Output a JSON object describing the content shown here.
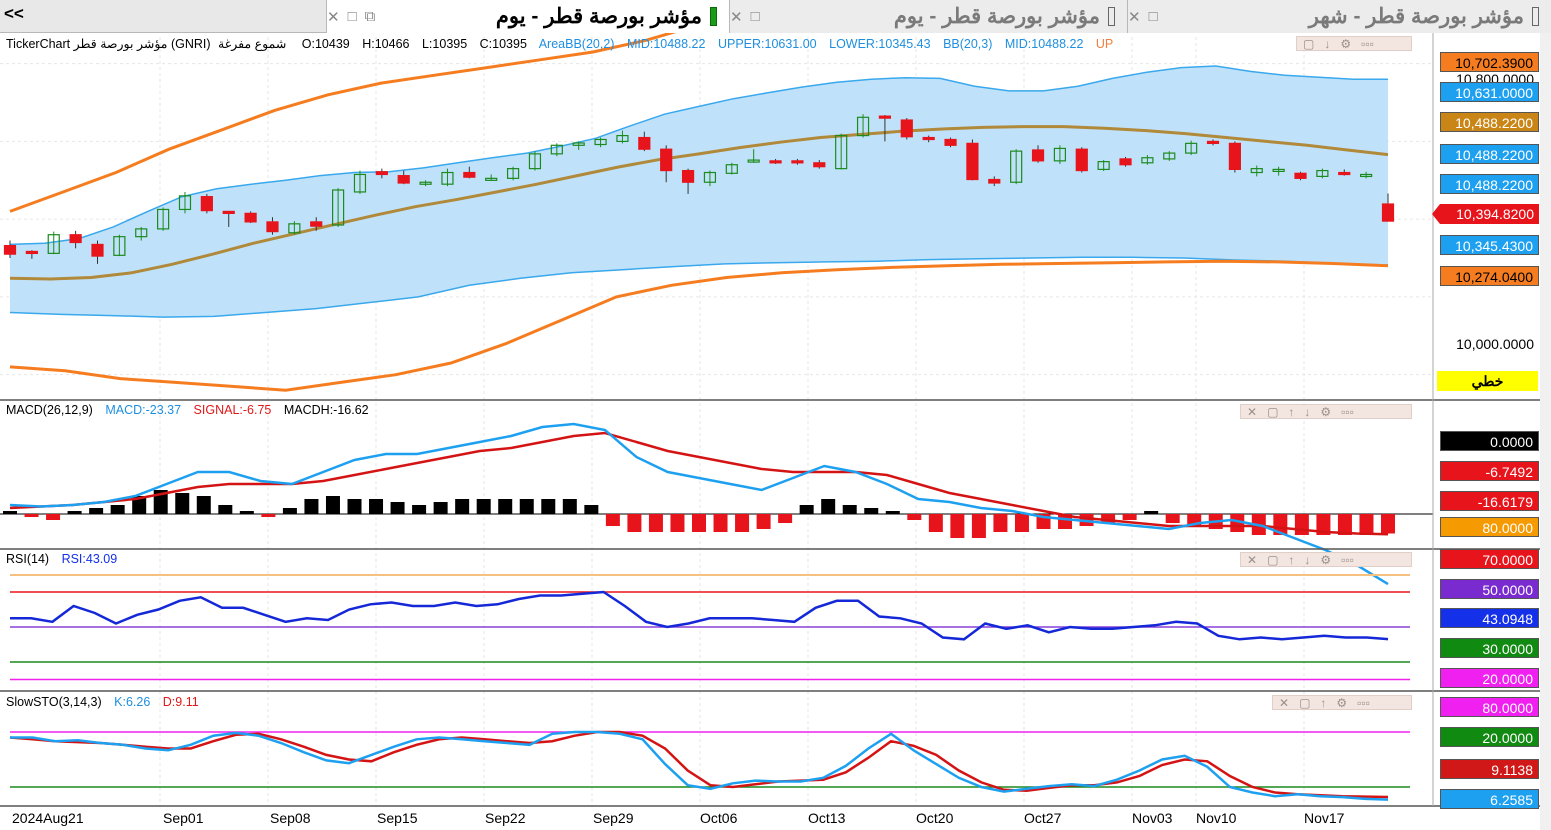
{
  "tabs": {
    "nav_arrows": "<<",
    "items": [
      {
        "label": "مؤشر بورصة قطر - يوم",
        "active": true
      },
      {
        "label": "مؤشر بورصة قطر - يوم",
        "active": false
      },
      {
        "label": "مؤشر بورصة قطر - شهر",
        "active": false
      }
    ]
  },
  "main_legend": {
    "symbol": "TickerChart مؤشر بورصة قطر (GNRI)",
    "candle_type": "شموع مفرغة",
    "open": "O:10439",
    "high": "H:10466",
    "low": "L:10395",
    "close": "C:10395",
    "areabb": "AreaBB(20,2)",
    "areabb_mid": "MID:10488.22",
    "areabb_upper": "UPPER:10631.00",
    "areabb_lower": "LOWER:10345.43",
    "bb": "BB(20,3)",
    "bb_mid": "MID:10488.22",
    "bb_upper_trunc": "UP",
    "colors": {
      "areabb": "#1e8fe0",
      "bb": "#1e8fe0"
    }
  },
  "macd_legend": {
    "name": "MACD(26,12,9)",
    "macd": "MACD:-23.37",
    "signal": "SIGNAL:-6.75",
    "hist": "MACDH:-16.62"
  },
  "rsi_legend": {
    "name": "RSI(14)",
    "rsi": "RSI:43.09"
  },
  "sto_legend": {
    "name": "SlowSTO(3,14,3)",
    "k": "K:6.26",
    "d": "D:9.11"
  },
  "price_axis": [
    {
      "text": "10,702.3900",
      "bg": "#f57d20",
      "color": "#000"
    },
    {
      "text": "10,631.0000",
      "bg": "#1ea0f0",
      "color": "#fff"
    },
    {
      "text": "10,488.2200",
      "bg": "#c98516",
      "color": "#fff"
    },
    {
      "text": "10,488.2200",
      "bg": "#1ea0f0",
      "color": "#fff"
    },
    {
      "text": "10,488.2200",
      "bg": "#1ea0f0",
      "color": "#fff"
    },
    {
      "text": "10,394.8200",
      "bg": "#e8141c",
      "color": "#fff"
    },
    {
      "text": "10,345.4300",
      "bg": "#1ea0f0",
      "color": "#fff"
    },
    {
      "text": "10,274.0400",
      "bg": "#f57d20",
      "color": "#000"
    },
    {
      "text": "10,000.0000",
      "bg": "",
      "color": "#000"
    },
    {
      "text": "10,800.0000",
      "bg": "",
      "color": "#000"
    }
  ],
  "chart_style_button": "خطي",
  "macd_axis": [
    {
      "text": "0.0000",
      "bg": "#000000",
      "color": "#fff"
    },
    {
      "text": "-6.7492",
      "bg": "#e8141c",
      "color": "#fff"
    },
    {
      "text": "-16.6179",
      "bg": "#e8141c",
      "color": "#fff"
    },
    {
      "text": "80.0000",
      "bg": "#f59a00",
      "color": "#fff"
    }
  ],
  "rsi_axis": [
    {
      "text": "70.0000",
      "bg": "#e8141c",
      "color": "#fff"
    },
    {
      "text": "50.0000",
      "bg": "#7a2bd0",
      "color": "#fff"
    },
    {
      "text": "43.0948",
      "bg": "#1430e8",
      "color": "#fff"
    },
    {
      "text": "30.0000",
      "bg": "#118a11",
      "color": "#fff"
    },
    {
      "text": "20.0000",
      "bg": "#f020f0",
      "color": "#fff"
    }
  ],
  "sto_axis": [
    {
      "text": "80.0000",
      "bg": "#f020f0",
      "color": "#fff"
    },
    {
      "text": "20.0000",
      "bg": "#118a11",
      "color": "#fff"
    },
    {
      "text": "9.1138",
      "bg": "#d01818",
      "color": "#fff"
    },
    {
      "text": "6.2585",
      "bg": "#1ea0f0",
      "color": "#fff"
    }
  ],
  "x_axis_labels": [
    "2024Aug21",
    "Sep01",
    "Sep08",
    "Sep15",
    "Sep22",
    "Sep29",
    "Oct06",
    "Oct13",
    "Oct20",
    "Oct27",
    "Nov03",
    "Nov10",
    "Nov17"
  ],
  "chart_data": {
    "type": "line",
    "price": {
      "ohlc": [
        [
          10332,
          10345,
          10300,
          10310
        ],
        [
          10317,
          10320,
          10298,
          10312
        ],
        [
          10312,
          10368,
          10310,
          10360
        ],
        [
          10360,
          10370,
          10325,
          10340
        ],
        [
          10335,
          10345,
          10285,
          10305
        ],
        [
          10307,
          10360,
          10305,
          10355
        ],
        [
          10355,
          10380,
          10345,
          10375
        ],
        [
          10375,
          10430,
          10370,
          10425
        ],
        [
          10425,
          10470,
          10415,
          10460
        ],
        [
          10458,
          10465,
          10415,
          10422
        ],
        [
          10420,
          10420,
          10380,
          10418
        ],
        [
          10415,
          10420,
          10390,
          10393
        ],
        [
          10393,
          10405,
          10360,
          10368
        ],
        [
          10365,
          10395,
          10360,
          10388
        ],
        [
          10393,
          10405,
          10370,
          10382
        ],
        [
          10385,
          10480,
          10380,
          10475
        ],
        [
          10470,
          10525,
          10465,
          10515
        ],
        [
          10522,
          10530,
          10505,
          10515
        ],
        [
          10512,
          10525,
          10490,
          10493
        ],
        [
          10493,
          10500,
          10485,
          10495
        ],
        [
          10490,
          10530,
          10485,
          10520
        ],
        [
          10520,
          10535,
          10505,
          10508
        ],
        [
          10505,
          10515,
          10500,
          10505
        ],
        [
          10505,
          10535,
          10500,
          10530
        ],
        [
          10530,
          10575,
          10525,
          10568
        ],
        [
          10568,
          10595,
          10562,
          10590
        ],
        [
          10590,
          10600,
          10578,
          10596
        ],
        [
          10592,
          10610,
          10585,
          10605
        ],
        [
          10600,
          10628,
          10595,
          10615
        ],
        [
          10610,
          10625,
          10575,
          10580
        ],
        [
          10580,
          10590,
          10495,
          10525
        ],
        [
          10525,
          10530,
          10465,
          10495
        ],
        [
          10495,
          10525,
          10485,
          10520
        ],
        [
          10518,
          10545,
          10515,
          10540
        ],
        [
          10548,
          10580,
          10545,
          10552
        ],
        [
          10550,
          10555,
          10542,
          10548
        ],
        [
          10550,
          10555,
          10540,
          10545
        ],
        [
          10545,
          10552,
          10530,
          10535
        ],
        [
          10530,
          10620,
          10528,
          10615
        ],
        [
          10615,
          10670,
          10610,
          10662
        ],
        [
          10665,
          10668,
          10600,
          10660
        ],
        [
          10655,
          10660,
          10605,
          10612
        ],
        [
          10610,
          10615,
          10598,
          10605
        ],
        [
          10605,
          10610,
          10585,
          10590
        ],
        [
          10595,
          10605,
          10500,
          10502
        ],
        [
          10502,
          10510,
          10485,
          10493
        ],
        [
          10495,
          10580,
          10490,
          10575
        ],
        [
          10578,
          10590,
          10545,
          10550
        ],
        [
          10550,
          10590,
          10542,
          10582
        ],
        [
          10580,
          10585,
          10520,
          10525
        ],
        [
          10528,
          10552,
          10524,
          10548
        ],
        [
          10555,
          10560,
          10535,
          10540
        ],
        [
          10545,
          10565,
          10540,
          10558
        ],
        [
          10555,
          10575,
          10550,
          10570
        ],
        [
          10570,
          10602,
          10565,
          10595
        ],
        [
          10600,
          10605,
          10590,
          10595
        ],
        [
          10595,
          10600,
          10520,
          10528
        ],
        [
          10520,
          10538,
          10510,
          10530
        ],
        [
          10525,
          10535,
          10512,
          10528
        ],
        [
          10518,
          10522,
          10500,
          10505
        ],
        [
          10510,
          10530,
          10505,
          10525
        ],
        [
          10520,
          10528,
          10512,
          10517
        ],
        [
          10512,
          10522,
          10505,
          10515
        ],
        [
          10439,
          10466,
          10395,
          10395
        ]
      ],
      "bb_upper": [
        10335,
        10338,
        10350,
        10380,
        10420,
        10458,
        10478,
        10490,
        10500,
        10512,
        10520,
        10522,
        10532,
        10545,
        10558,
        10570,
        10588,
        10608,
        10640,
        10670,
        10690,
        10710,
        10725,
        10740,
        10752,
        10760,
        10764,
        10762,
        10742,
        10730,
        10730,
        10742,
        10762,
        10778,
        10790,
        10794,
        10780,
        10770,
        10765,
        10760,
        10760
      ],
      "bb_lower": [
        10160,
        10155,
        10152,
        10148,
        10150,
        10160,
        10170,
        10185,
        10200,
        10230,
        10248,
        10262,
        10270,
        10278,
        10285,
        10288,
        10290,
        10292,
        10296,
        10298,
        10300,
        10302,
        10302,
        10300,
        10295,
        10292,
        10286,
        10282
      ],
      "bb3_upper": [
        10420,
        10470,
        10520,
        10580,
        10630,
        10680,
        10720,
        10750,
        10770,
        10790,
        10810,
        10830,
        10860,
        10900,
        10950,
        11000,
        11060,
        11100,
        11140,
        11160,
        11170,
        11175,
        11180,
        11182,
        11184,
        11180,
        11160
      ],
      "bb3_lower": [
        10020,
        10010,
        9990,
        9980,
        9970,
        9960,
        9980,
        10000,
        10030,
        10080,
        10140,
        10200,
        10230,
        10250,
        10262,
        10270,
        10276,
        10280,
        10284,
        10286,
        10288,
        10290,
        10292,
        10290,
        10286,
        10280
      ],
      "bb_mid": [
        10248,
        10246,
        10250,
        10262,
        10284,
        10310,
        10338,
        10362,
        10386,
        10410,
        10432,
        10450,
        10470,
        10490,
        10512,
        10534,
        10553,
        10568,
        10584,
        10598,
        10610,
        10618,
        10626,
        10632,
        10636,
        10638,
        10638,
        10634,
        10628,
        10620,
        10610,
        10600,
        10590,
        10578,
        10566
      ]
    },
    "macd": {
      "macd": [
        3,
        2.5,
        3,
        4,
        6,
        10,
        14,
        14,
        11,
        10,
        14,
        18,
        20,
        20,
        22,
        24,
        26,
        29,
        30,
        28,
        19,
        14,
        12,
        10,
        8,
        12,
        16,
        14,
        10,
        5,
        4,
        2,
        1,
        -1,
        -2,
        -3,
        -4,
        -5,
        -3,
        -2,
        -4,
        -8,
        -12,
        -17,
        -23.37
      ],
      "signal": [
        2,
        2.5,
        3,
        4,
        5,
        7,
        9,
        10,
        10,
        10,
        11,
        13,
        15,
        17,
        19,
        21,
        22,
        24,
        26,
        27,
        24,
        21,
        19,
        17,
        15,
        14,
        14,
        14,
        13,
        10,
        7,
        5,
        3,
        1,
        -1,
        -2,
        -3,
        -4,
        -4,
        -4,
        -4,
        -5,
        -6,
        -6.5,
        -6.75
      ],
      "histogram": [
        1,
        -1,
        -2,
        1,
        2,
        3,
        6,
        8,
        7,
        6,
        3,
        1,
        -1,
        2,
        5,
        6,
        5,
        5,
        4,
        3,
        4,
        5,
        5,
        5,
        5,
        5,
        5,
        3,
        -4,
        -6,
        -6,
        -6,
        -6,
        -6,
        -6,
        -5,
        -3,
        3,
        5,
        3,
        2,
        1,
        -2,
        -6,
        -8,
        -8,
        -6,
        -6,
        -5,
        -5,
        -4,
        -3,
        -2,
        1,
        -3,
        -4,
        -5,
        -6,
        -7,
        -7,
        -7,
        -7,
        -7,
        -7,
        -6.5
      ]
    },
    "rsi": {
      "values": [
        55,
        55,
        53,
        62,
        58,
        52,
        57,
        60,
        65,
        67,
        61,
        61,
        57,
        53,
        55,
        54,
        60,
        63,
        64,
        62,
        62,
        64,
        62,
        63,
        66,
        68,
        68,
        69,
        70,
        62,
        53,
        50,
        52,
        55,
        55,
        55,
        54,
        53,
        61,
        65,
        65,
        56,
        55,
        52,
        44,
        43,
        52,
        49,
        51,
        47,
        50,
        49,
        49,
        50,
        51,
        53,
        52,
        45,
        43,
        44,
        43,
        44,
        45,
        44,
        44,
        43.09
      ],
      "levels": [
        70,
        50,
        30,
        20
      ]
    },
    "slow_sto": {
      "k": [
        74,
        74,
        70,
        71,
        68,
        66,
        62,
        60,
        66,
        76,
        79,
        76,
        68,
        58,
        49,
        46,
        55,
        64,
        72,
        74,
        72,
        70,
        68,
        66,
        78,
        80,
        80,
        78,
        72,
        45,
        22,
        18,
        24,
        27,
        26,
        26,
        30,
        43,
        62,
        78,
        60,
        45,
        30,
        20,
        15,
        18,
        21,
        23,
        21,
        28,
        38,
        50,
        54,
        42,
        20,
        14,
        10,
        12,
        10,
        9,
        7,
        6.26
      ],
      "d": [
        74,
        72,
        70,
        69,
        68,
        66,
        64,
        62,
        62,
        70,
        77,
        78,
        72,
        64,
        55,
        50,
        48,
        58,
        66,
        72,
        74,
        72,
        70,
        68,
        70,
        76,
        80,
        80,
        76,
        62,
        38,
        22,
        20,
        23,
        26,
        27,
        28,
        36,
        52,
        70,
        65,
        55,
        38,
        25,
        17,
        16,
        19,
        22,
        22,
        25,
        32,
        44,
        50,
        48,
        32,
        20,
        14,
        12,
        11,
        10,
        9.5,
        9.11
      ],
      "levels": [
        80,
        20
      ]
    }
  }
}
